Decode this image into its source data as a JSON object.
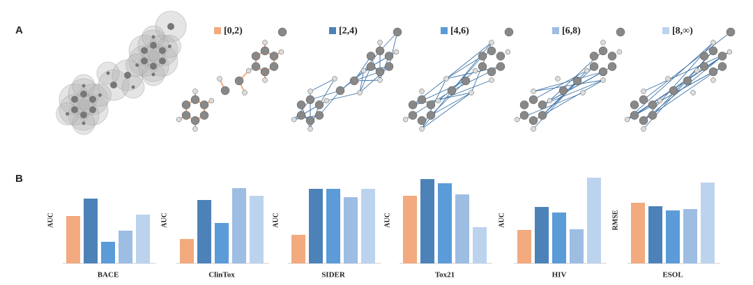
{
  "panel_a": {
    "label": "A"
  },
  "panel_b": {
    "label": "B"
  },
  "legend": [
    {
      "label": "[0,2)",
      "color": "#f2aa7e"
    },
    {
      "label": "[2,4)",
      "color": "#4c82b7"
    },
    {
      "label": "[4,6)",
      "color": "#5b9bd8"
    },
    {
      "label": "[6,8)",
      "color": "#9dbde3"
    },
    {
      "label": "[8,∞)",
      "color": "#bcd3ee"
    }
  ],
  "chart_data": [
    {
      "type": "bar",
      "xlabel": "BACE",
      "ylabel": "AUC",
      "values": [
        68,
        93,
        31,
        47,
        70
      ]
    },
    {
      "type": "bar",
      "xlabel": "ClinTox",
      "ylabel": "AUC",
      "values": [
        35,
        91,
        58,
        108,
        97
      ]
    },
    {
      "type": "bar",
      "xlabel": "SIDER",
      "ylabel": "AUC",
      "values": [
        41,
        107,
        107,
        95,
        107
      ]
    },
    {
      "type": "bar",
      "xlabel": "Tox21",
      "ylabel": "AUC",
      "values": [
        97,
        121,
        115,
        99,
        52
      ]
    },
    {
      "type": "bar",
      "xlabel": "HIV",
      "ylabel": "AUC",
      "values": [
        48,
        81,
        73,
        49,
        123
      ]
    },
    {
      "type": "bar",
      "xlabel": "ESOL",
      "ylabel": "RMSE",
      "values": [
        87,
        82,
        76,
        78,
        116
      ]
    }
  ]
}
